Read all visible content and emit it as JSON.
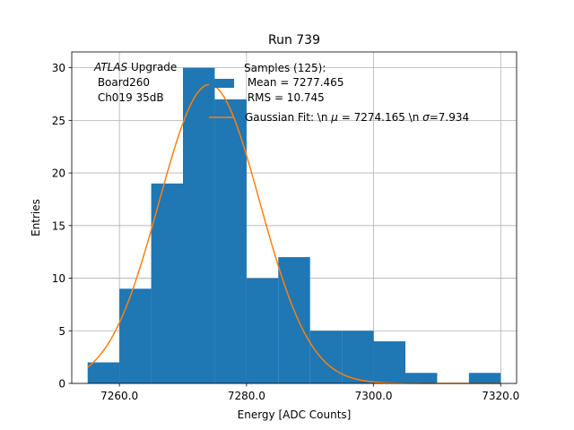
{
  "chart_data": {
    "type": "histogram",
    "title": "Run 739",
    "xlabel": "Energy [ADC Counts]",
    "ylabel": "Entries",
    "xlim": [
      7252.5,
      7322.5
    ],
    "ylim": [
      0,
      31.5
    ],
    "x_ticks": [
      7260,
      7280,
      7300,
      7320
    ],
    "x_tick_labels": [
      "7260.0",
      "7280.0",
      "7300.0",
      "7320.0"
    ],
    "y_ticks": [
      0,
      5,
      10,
      15,
      20,
      25,
      30
    ],
    "y_tick_labels": [
      "0",
      "5",
      "10",
      "15",
      "20",
      "25",
      "30"
    ],
    "grid": true,
    "bin_edges": [
      7255,
      7260,
      7265,
      7270,
      7275,
      7280,
      7285,
      7290,
      7295,
      7300,
      7305,
      7310,
      7315,
      7320
    ],
    "counts": [
      2,
      9,
      19,
      30,
      27,
      10,
      12,
      5,
      5,
      4,
      1,
      0,
      1
    ],
    "bar_color": "#1f77b4",
    "fit": {
      "mu": 7274.165,
      "sigma": 7.934,
      "amplitude": 28.4,
      "x_range": [
        7255,
        7320
      ],
      "color": "#ff7f0e"
    },
    "annotation": {
      "line1_italic": "ATLAS",
      "line1_rest": " Upgrade",
      "line2": " Board260",
      "line3": " Ch019 35dB"
    },
    "legend": {
      "placement": "top-right",
      "hist_line1": "Samples (125):",
      "hist_line2": " Mean = 7277.465",
      "hist_line3": " RMS = 10.745",
      "fit_label": "Gaussian Fit: \\n $\\mu$ = 7274.165 \\n $\\sigma$=7.934",
      "fit_prefix": "Gaussian Fit: \\n ",
      "fit_mu_symbol": "μ",
      "fit_mid": " = 7274.165 \\n ",
      "fit_sigma_symbol": "σ",
      "fit_suffix": "=7.934"
    }
  }
}
